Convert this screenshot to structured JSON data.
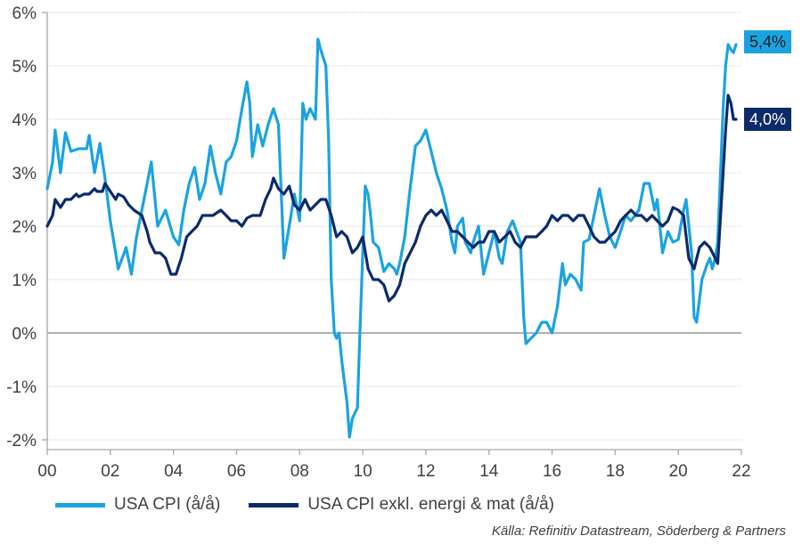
{
  "chart_data": {
    "type": "line",
    "title": "",
    "xlabel": "",
    "ylabel": "",
    "xlim": [
      0,
      22
    ],
    "ylim": [
      -2,
      6
    ],
    "x_ticks": [
      "00",
      "02",
      "04",
      "06",
      "08",
      "10",
      "12",
      "14",
      "16",
      "18",
      "20",
      "22"
    ],
    "y_ticks": [
      "-2%",
      "-1%",
      "0%",
      "1%",
      "2%",
      "3%",
      "4%",
      "5%",
      "6%"
    ],
    "grid": "horizontal-dotted",
    "legend_position": "bottom",
    "series": [
      {
        "name": "USA CPI (å/å)",
        "color": "#1aa3e0",
        "end_label": "5,4%",
        "points": [
          [
            0.0,
            2.7
          ],
          [
            0.17,
            3.2
          ],
          [
            0.25,
            3.8
          ],
          [
            0.42,
            3.0
          ],
          [
            0.58,
            3.75
          ],
          [
            0.75,
            3.4
          ],
          [
            1.0,
            3.45
          ],
          [
            1.25,
            3.45
          ],
          [
            1.33,
            3.7
          ],
          [
            1.5,
            3.0
          ],
          [
            1.67,
            3.55
          ],
          [
            1.83,
            2.9
          ],
          [
            2.0,
            2.1
          ],
          [
            2.25,
            1.2
          ],
          [
            2.5,
            1.6
          ],
          [
            2.67,
            1.1
          ],
          [
            2.83,
            1.8
          ],
          [
            3.0,
            2.3
          ],
          [
            3.2,
            2.9
          ],
          [
            3.3,
            3.2
          ],
          [
            3.5,
            2.0
          ],
          [
            3.75,
            2.3
          ],
          [
            4.0,
            1.8
          ],
          [
            4.17,
            1.65
          ],
          [
            4.33,
            2.3
          ],
          [
            4.5,
            2.8
          ],
          [
            4.67,
            3.1
          ],
          [
            4.83,
            2.5
          ],
          [
            5.0,
            2.8
          ],
          [
            5.17,
            3.5
          ],
          [
            5.33,
            3.0
          ],
          [
            5.5,
            2.6
          ],
          [
            5.67,
            3.2
          ],
          [
            5.83,
            3.3
          ],
          [
            6.0,
            3.6
          ],
          [
            6.17,
            4.2
          ],
          [
            6.33,
            4.7
          ],
          [
            6.42,
            4.3
          ],
          [
            6.5,
            3.3
          ],
          [
            6.67,
            3.9
          ],
          [
            6.83,
            3.5
          ],
          [
            7.0,
            3.9
          ],
          [
            7.17,
            4.2
          ],
          [
            7.33,
            3.9
          ],
          [
            7.5,
            1.4
          ],
          [
            7.67,
            2.0
          ],
          [
            7.83,
            2.6
          ],
          [
            8.0,
            2.1
          ],
          [
            8.1,
            4.3
          ],
          [
            8.2,
            4.0
          ],
          [
            8.33,
            4.2
          ],
          [
            8.5,
            4.0
          ],
          [
            8.58,
            5.5
          ],
          [
            8.67,
            5.3
          ],
          [
            8.83,
            5.0
          ],
          [
            8.92,
            3.6
          ],
          [
            9.0,
            1.0
          ],
          [
            9.1,
            0.0
          ],
          [
            9.17,
            -0.1
          ],
          [
            9.25,
            0.0
          ],
          [
            9.33,
            -0.5
          ],
          [
            9.5,
            -1.3
          ],
          [
            9.58,
            -1.95
          ],
          [
            9.67,
            -1.6
          ],
          [
            9.83,
            -1.4
          ],
          [
            9.92,
            0.2
          ],
          [
            10.0,
            1.5
          ],
          [
            10.08,
            2.75
          ],
          [
            10.17,
            2.6
          ],
          [
            10.25,
            2.2
          ],
          [
            10.33,
            1.7
          ],
          [
            10.5,
            1.6
          ],
          [
            10.67,
            1.15
          ],
          [
            10.83,
            1.3
          ],
          [
            11.0,
            1.2
          ],
          [
            11.08,
            1.1
          ],
          [
            11.17,
            1.3
          ],
          [
            11.33,
            1.8
          ],
          [
            11.5,
            2.7
          ],
          [
            11.67,
            3.5
          ],
          [
            11.83,
            3.6
          ],
          [
            12.0,
            3.8
          ],
          [
            12.17,
            3.4
          ],
          [
            12.33,
            3.0
          ],
          [
            12.5,
            2.7
          ],
          [
            12.67,
            2.3
          ],
          [
            12.83,
            1.7
          ],
          [
            12.92,
            1.5
          ],
          [
            13.0,
            2.0
          ],
          [
            13.17,
            2.15
          ],
          [
            13.25,
            1.7
          ],
          [
            13.42,
            1.5
          ],
          [
            13.5,
            1.7
          ],
          [
            13.67,
            2.0
          ],
          [
            13.83,
            1.1
          ],
          [
            14.0,
            1.5
          ],
          [
            14.17,
            1.9
          ],
          [
            14.33,
            1.4
          ],
          [
            14.42,
            1.3
          ],
          [
            14.58,
            1.9
          ],
          [
            14.75,
            2.1
          ],
          [
            15.0,
            1.7
          ],
          [
            15.1,
            0.3
          ],
          [
            15.17,
            -0.2
          ],
          [
            15.33,
            -0.1
          ],
          [
            15.5,
            0.0
          ],
          [
            15.67,
            0.2
          ],
          [
            15.83,
            0.2
          ],
          [
            16.0,
            0.0
          ],
          [
            16.17,
            0.5
          ],
          [
            16.33,
            1.3
          ],
          [
            16.42,
            0.9
          ],
          [
            16.58,
            1.1
          ],
          [
            16.75,
            1.0
          ],
          [
            16.92,
            0.8
          ],
          [
            17.0,
            1.7
          ],
          [
            17.17,
            1.75
          ],
          [
            17.33,
            2.2
          ],
          [
            17.5,
            2.7
          ],
          [
            17.67,
            2.2
          ],
          [
            17.83,
            1.8
          ],
          [
            18.0,
            1.6
          ],
          [
            18.17,
            1.9
          ],
          [
            18.33,
            2.2
          ],
          [
            18.5,
            2.1
          ],
          [
            18.75,
            2.3
          ],
          [
            18.92,
            2.8
          ],
          [
            19.08,
            2.8
          ],
          [
            19.25,
            2.3
          ],
          [
            19.33,
            2.5
          ],
          [
            19.5,
            1.5
          ],
          [
            19.67,
            1.9
          ],
          [
            19.83,
            1.7
          ],
          [
            20.0,
            1.75
          ],
          [
            20.17,
            2.3
          ],
          [
            20.25,
            2.5
          ],
          [
            20.42,
            1.5
          ],
          [
            20.5,
            0.3
          ],
          [
            20.58,
            0.2
          ],
          [
            20.75,
            1.0
          ],
          [
            20.92,
            1.3
          ],
          [
            21.0,
            1.4
          ],
          [
            21.08,
            1.2
          ],
          [
            21.17,
            1.4
          ],
          [
            21.25,
            1.7
          ],
          [
            21.42,
            4.2
          ],
          [
            21.5,
            5.0
          ],
          [
            21.58,
            5.4
          ],
          [
            21.67,
            5.3
          ],
          [
            21.75,
            5.25
          ],
          [
            21.83,
            5.4
          ]
        ]
      },
      {
        "name": "USA CPI exkl. energi & mat (å/å)",
        "color": "#0b2a6b",
        "end_label": "4,0%",
        "points": [
          [
            0.0,
            2.0
          ],
          [
            0.17,
            2.2
          ],
          [
            0.25,
            2.5
          ],
          [
            0.42,
            2.35
          ],
          [
            0.58,
            2.5
          ],
          [
            0.75,
            2.5
          ],
          [
            0.92,
            2.6
          ],
          [
            1.0,
            2.55
          ],
          [
            1.17,
            2.6
          ],
          [
            1.33,
            2.6
          ],
          [
            1.5,
            2.7
          ],
          [
            1.58,
            2.65
          ],
          [
            1.75,
            2.65
          ],
          [
            1.83,
            2.8
          ],
          [
            2.0,
            2.65
          ],
          [
            2.17,
            2.5
          ],
          [
            2.25,
            2.6
          ],
          [
            2.42,
            2.55
          ],
          [
            2.58,
            2.4
          ],
          [
            2.75,
            2.3
          ],
          [
            3.0,
            2.2
          ],
          [
            3.17,
            1.9
          ],
          [
            3.25,
            1.7
          ],
          [
            3.42,
            1.5
          ],
          [
            3.58,
            1.5
          ],
          [
            3.75,
            1.4
          ],
          [
            3.92,
            1.1
          ],
          [
            4.08,
            1.1
          ],
          [
            4.25,
            1.4
          ],
          [
            4.42,
            1.8
          ],
          [
            4.58,
            1.9
          ],
          [
            4.75,
            2.0
          ],
          [
            4.92,
            2.2
          ],
          [
            5.08,
            2.2
          ],
          [
            5.25,
            2.2
          ],
          [
            5.5,
            2.3
          ],
          [
            5.67,
            2.2
          ],
          [
            5.83,
            2.1
          ],
          [
            6.0,
            2.1
          ],
          [
            6.17,
            2.0
          ],
          [
            6.33,
            2.15
          ],
          [
            6.5,
            2.2
          ],
          [
            6.75,
            2.2
          ],
          [
            6.92,
            2.5
          ],
          [
            7.08,
            2.7
          ],
          [
            7.17,
            2.9
          ],
          [
            7.33,
            2.7
          ],
          [
            7.5,
            2.6
          ],
          [
            7.67,
            2.75
          ],
          [
            7.83,
            2.4
          ],
          [
            8.0,
            2.3
          ],
          [
            8.17,
            2.5
          ],
          [
            8.33,
            2.3
          ],
          [
            8.5,
            2.4
          ],
          [
            8.67,
            2.5
          ],
          [
            8.83,
            2.5
          ],
          [
            9.0,
            2.2
          ],
          [
            9.17,
            1.8
          ],
          [
            9.33,
            1.9
          ],
          [
            9.5,
            1.8
          ],
          [
            9.67,
            1.5
          ],
          [
            9.83,
            1.6
          ],
          [
            10.0,
            1.8
          ],
          [
            10.17,
            1.2
          ],
          [
            10.33,
            1.0
          ],
          [
            10.5,
            1.0
          ],
          [
            10.67,
            0.9
          ],
          [
            10.83,
            0.6
          ],
          [
            11.0,
            0.7
          ],
          [
            11.17,
            0.9
          ],
          [
            11.33,
            1.3
          ],
          [
            11.5,
            1.5
          ],
          [
            11.67,
            1.7
          ],
          [
            11.83,
            2.0
          ],
          [
            12.0,
            2.2
          ],
          [
            12.17,
            2.3
          ],
          [
            12.33,
            2.2
          ],
          [
            12.5,
            2.3
          ],
          [
            12.67,
            2.1
          ],
          [
            12.83,
            1.9
          ],
          [
            13.0,
            1.9
          ],
          [
            13.17,
            1.8
          ],
          [
            13.33,
            1.7
          ],
          [
            13.5,
            1.6
          ],
          [
            13.67,
            1.7
          ],
          [
            13.83,
            1.7
          ],
          [
            14.0,
            1.9
          ],
          [
            14.17,
            1.9
          ],
          [
            14.33,
            1.7
          ],
          [
            14.5,
            1.8
          ],
          [
            14.67,
            1.9
          ],
          [
            14.83,
            1.7
          ],
          [
            15.0,
            1.6
          ],
          [
            15.17,
            1.8
          ],
          [
            15.33,
            1.8
          ],
          [
            15.5,
            1.8
          ],
          [
            15.67,
            1.9
          ],
          [
            15.83,
            2.0
          ],
          [
            16.0,
            2.2
          ],
          [
            16.17,
            2.1
          ],
          [
            16.33,
            2.2
          ],
          [
            16.5,
            2.2
          ],
          [
            16.67,
            2.1
          ],
          [
            16.83,
            2.2
          ],
          [
            17.0,
            2.2
          ],
          [
            17.17,
            2.0
          ],
          [
            17.33,
            1.8
          ],
          [
            17.5,
            1.7
          ],
          [
            17.67,
            1.7
          ],
          [
            17.83,
            1.8
          ],
          [
            18.0,
            1.9
          ],
          [
            18.17,
            2.1
          ],
          [
            18.33,
            2.2
          ],
          [
            18.5,
            2.3
          ],
          [
            18.67,
            2.2
          ],
          [
            18.83,
            2.2
          ],
          [
            19.0,
            2.1
          ],
          [
            19.17,
            2.2
          ],
          [
            19.33,
            2.1
          ],
          [
            19.5,
            2.0
          ],
          [
            19.67,
            2.1
          ],
          [
            19.83,
            2.35
          ],
          [
            20.0,
            2.3
          ],
          [
            20.17,
            2.2
          ],
          [
            20.33,
            1.4
          ],
          [
            20.5,
            1.2
          ],
          [
            20.67,
            1.6
          ],
          [
            20.83,
            1.7
          ],
          [
            21.0,
            1.6
          ],
          [
            21.17,
            1.4
          ],
          [
            21.25,
            1.3
          ],
          [
            21.42,
            3.0
          ],
          [
            21.5,
            3.8
          ],
          [
            21.58,
            4.45
          ],
          [
            21.67,
            4.3
          ],
          [
            21.75,
            4.0
          ],
          [
            21.83,
            4.0
          ]
        ]
      }
    ]
  },
  "legend": {
    "items": [
      "USA CPI (å/å)",
      "USA CPI exkl. energi & mat (å/å)"
    ]
  },
  "source": "Källa: Refinitiv Datastream, Söderberg & Partners"
}
